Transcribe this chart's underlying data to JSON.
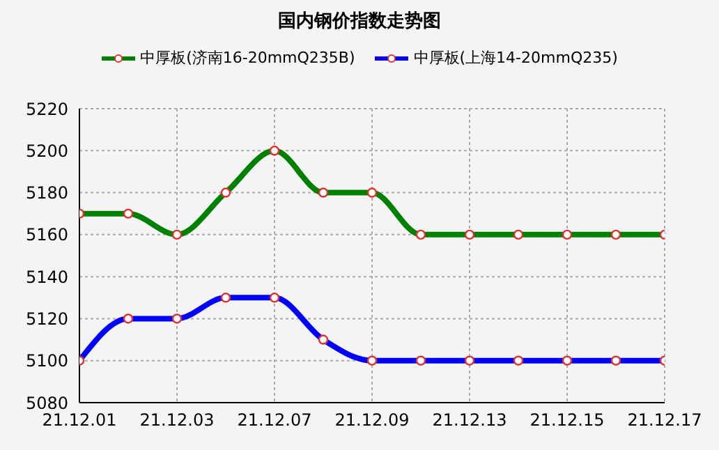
{
  "chart_data": {
    "type": "line",
    "title": "国内钢价指数走势图",
    "categories": [
      "21.12.01",
      null,
      "21.12.03",
      null,
      "21.12.07",
      null,
      "21.12.09",
      null,
      "21.12.13",
      null,
      "21.12.15",
      null,
      "21.12.17"
    ],
    "series": [
      {
        "name": "中厚板(济南16-20mmQ235B)",
        "color": "#008000",
        "values": [
          5170,
          5170,
          5160,
          5180,
          5200,
          5180,
          5180,
          5160,
          5160,
          5160,
          5160,
          5160,
          5160
        ]
      },
      {
        "name": "中厚板(上海14-20mmQ235)",
        "color": "#0000ff",
        "values": [
          5100,
          5120,
          5120,
          5130,
          5130,
          5110,
          5100,
          5100,
          5100,
          5100,
          5100,
          5100,
          5100
        ]
      }
    ],
    "ylim": [
      5080,
      5220
    ],
    "yticks": [
      5080,
      5100,
      5120,
      5140,
      5160,
      5180,
      5200,
      5220
    ],
    "grid": true,
    "legend": "top",
    "marker": "circle",
    "line_style": "solid"
  }
}
